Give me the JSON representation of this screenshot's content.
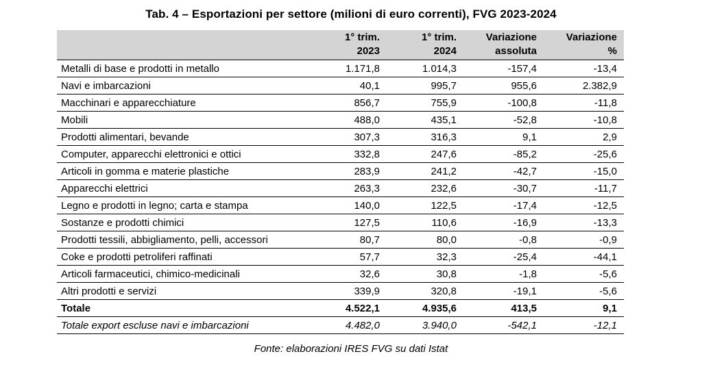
{
  "title": "Tab. 4 – Esportazioni per settore (milioni di euro correnti), FVG 2023-2024",
  "headers": [
    {
      "line1": "",
      "line2": ""
    },
    {
      "line1": "1° trim.",
      "line2": "2023"
    },
    {
      "line1": "1° trim.",
      "line2": "2024"
    },
    {
      "line1": "Variazione",
      "line2": "assoluta"
    },
    {
      "line1": "Variazione",
      "line2": "%"
    }
  ],
  "rows": [
    {
      "label": "Metalli di base e prodotti in metallo",
      "v2023": "1.171,8",
      "v2024": "1.014,3",
      "abs": "-157,4",
      "pct": "-13,4"
    },
    {
      "label": "Navi e imbarcazioni",
      "v2023": "40,1",
      "v2024": "995,7",
      "abs": "955,6",
      "pct": "2.382,9"
    },
    {
      "label": "Macchinari e apparecchiature",
      "v2023": "856,7",
      "v2024": "755,9",
      "abs": "-100,8",
      "pct": "-11,8"
    },
    {
      "label": "Mobili",
      "v2023": "488,0",
      "v2024": "435,1",
      "abs": "-52,8",
      "pct": "-10,8"
    },
    {
      "label": "Prodotti alimentari, bevande",
      "v2023": "307,3",
      "v2024": "316,3",
      "abs": "9,1",
      "pct": "2,9"
    },
    {
      "label": "Computer, apparecchi elettronici e ottici",
      "v2023": "332,8",
      "v2024": "247,6",
      "abs": "-85,2",
      "pct": "-25,6"
    },
    {
      "label": "Articoli in gomma e materie plastiche",
      "v2023": "283,9",
      "v2024": "241,2",
      "abs": "-42,7",
      "pct": "-15,0"
    },
    {
      "label": "Apparecchi elettrici",
      "v2023": "263,3",
      "v2024": "232,6",
      "abs": "-30,7",
      "pct": "-11,7"
    },
    {
      "label": "Legno e prodotti in legno; carta e stampa",
      "v2023": "140,0",
      "v2024": "122,5",
      "abs": "-17,4",
      "pct": "-12,5"
    },
    {
      "label": "Sostanze e prodotti chimici",
      "v2023": "127,5",
      "v2024": "110,6",
      "abs": "-16,9",
      "pct": "-13,3"
    },
    {
      "label": "Prodotti tessili, abbigliamento, pelli, accessori",
      "v2023": "80,7",
      "v2024": "80,0",
      "abs": "-0,8",
      "pct": "-0,9"
    },
    {
      "label": "Coke e prodotti petroliferi raffinati",
      "v2023": "57,7",
      "v2024": "32,3",
      "abs": "-25,4",
      "pct": "-44,1"
    },
    {
      "label": "Articoli farmaceutici, chimico-medicinali",
      "v2023": "32,6",
      "v2024": "30,8",
      "abs": "-1,8",
      "pct": "-5,6"
    },
    {
      "label": "Altri prodotti e servizi",
      "v2023": "339,9",
      "v2024": "320,8",
      "abs": "-19,1",
      "pct": "-5,6"
    }
  ],
  "total": {
    "label": "Totale",
    "v2023": "4.522,1",
    "v2024": "4.935,6",
    "abs": "413,5",
    "pct": "9,1"
  },
  "total_excl": {
    "label": "Totale export escluse navi e imbarcazioni",
    "v2023": "4.482,0",
    "v2024": "3.940,0",
    "abs": "-542,1",
    "pct": "-12,1"
  },
  "source": "Fonte: elaborazioni IRES FVG su dati Istat"
}
